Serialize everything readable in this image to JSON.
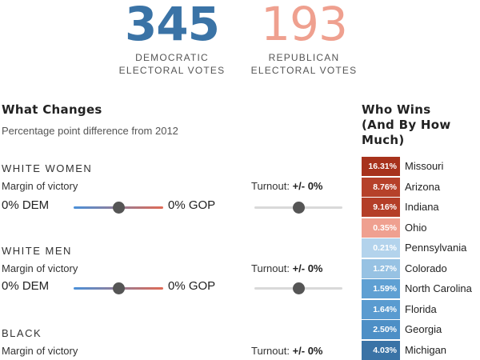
{
  "totals": {
    "dem": {
      "value": "345",
      "label_line1": "DEMOCRATIC",
      "label_line2": "ELECTORAL VOTES"
    },
    "gop": {
      "value": "193",
      "label_line1": "REPUBLICAN",
      "label_line2": "ELECTORAL VOTES"
    }
  },
  "changes": {
    "title": "What Changes",
    "subtitle": "Percentage point difference from 2012",
    "groups": [
      {
        "name": "WHITE WOMEN",
        "margin_label": "Margin of victory",
        "dem_value": "0% DEM",
        "gop_value": "0% GOP",
        "turnout_label": "Turnout:",
        "turnout_value": "+/- 0%",
        "margin_position": 0.5,
        "turnout_position": 0.5
      },
      {
        "name": "WHITE MEN",
        "margin_label": "Margin of victory",
        "dem_value": "0% DEM",
        "gop_value": "0% GOP",
        "turnout_label": "Turnout:",
        "turnout_value": "+/- 0%",
        "margin_position": 0.5,
        "turnout_position": 0.5
      },
      {
        "name": "BLACK",
        "margin_label": "Margin of victory",
        "turnout_label": "Turnout:",
        "turnout_value": "+/- 0%"
      }
    ]
  },
  "winners": {
    "title_line1": "Who Wins",
    "title_line2": "(And By How",
    "title_line3": "Much)",
    "states": [
      {
        "margin": "16.31%",
        "name": "Missouri",
        "color": "#a7321c"
      },
      {
        "margin": "8.76%",
        "name": "Arizona",
        "color": "#b6412a"
      },
      {
        "margin": "9.16%",
        "name": "Indiana",
        "color": "#b43e28"
      },
      {
        "margin": "0.35%",
        "name": "Ohio",
        "color": "#efa090"
      },
      {
        "margin": "0.21%",
        "name": "Pennsylvania",
        "color": "#b3d3ec"
      },
      {
        "margin": "1.27%",
        "name": "Colorado",
        "color": "#97c2e3"
      },
      {
        "margin": "1.59%",
        "name": "North Carolina",
        "color": "#5fa0d3"
      },
      {
        "margin": "1.64%",
        "name": "Florida",
        "color": "#5a9bd0"
      },
      {
        "margin": "2.50%",
        "name": "Georgia",
        "color": "#4d8fc6"
      },
      {
        "margin": "4.03%",
        "name": "Michigan",
        "color": "#3a73a6"
      }
    ]
  }
}
